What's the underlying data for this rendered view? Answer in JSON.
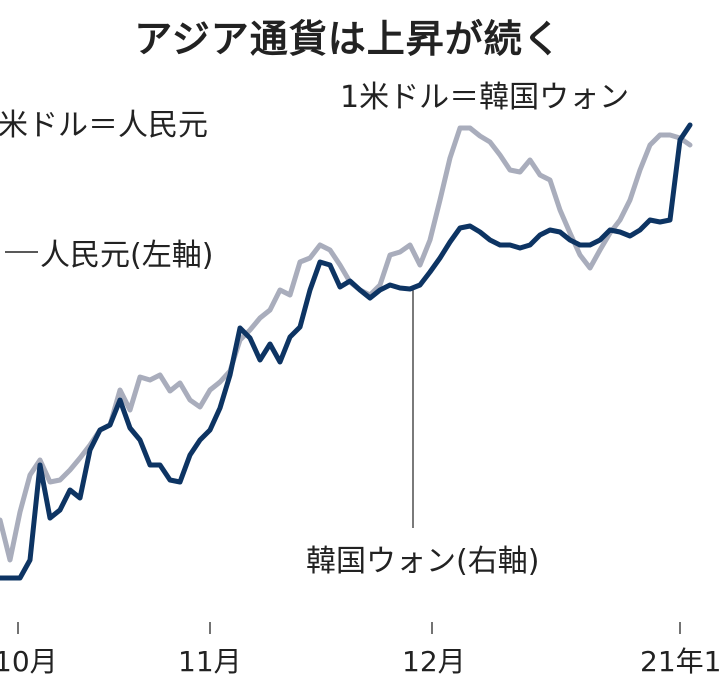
{
  "title": "アジア通貨は上昇が続く",
  "chart_data": {
    "type": "line",
    "title": "アジア通貨は上昇が続く",
    "annotations": [
      "米ドル＝人民元",
      "1米ドル＝韓国ウォン"
    ],
    "x_tick_labels": [
      "10月",
      "11月",
      "12月",
      "21年1"
    ],
    "grid": false,
    "series": [
      {
        "name": "人民元(左軸)",
        "color": "#a9adbc",
        "values": [
          80,
          40,
          88,
          125,
          140,
          118,
          120,
          130,
          142,
          155,
          170,
          175,
          210,
          190,
          223,
          220,
          225,
          209,
          217,
          200,
          193,
          210,
          218,
          229,
          260,
          270,
          282,
          290,
          310,
          305,
          338,
          342,
          355,
          350,
          335,
          318,
          310,
          305,
          315,
          345,
          348,
          355,
          335,
          360,
          400,
          442,
          472,
          472,
          464,
          458,
          445,
          430,
          428,
          440,
          425,
          420,
          390,
          367,
          345,
          332,
          350,
          367,
          380,
          400,
          430,
          455,
          465,
          465,
          462,
          455
        ]
      },
      {
        "name": "韓国ウォン(右軸)",
        "color": "#0d3463",
        "values": [
          22,
          22,
          22,
          40,
          135,
          82,
          90,
          110,
          102,
          150,
          170,
          175,
          200,
          172,
          160,
          135,
          135,
          120,
          118,
          145,
          160,
          170,
          192,
          225,
          272,
          262,
          240,
          256,
          238,
          263,
          273,
          310,
          338,
          335,
          313,
          319,
          310,
          302,
          310,
          315,
          312,
          311,
          315,
          328,
          342,
          358,
          372,
          374,
          368,
          360,
          355,
          355,
          352,
          355,
          365,
          370,
          368,
          360,
          355,
          355,
          360,
          370,
          368,
          364,
          370,
          380,
          378,
          380,
          460,
          475
        ]
      }
    ]
  }
}
